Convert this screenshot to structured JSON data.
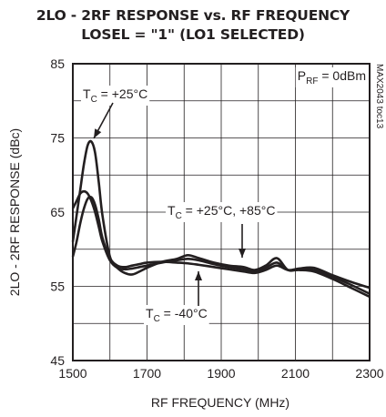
{
  "chart_data": {
    "type": "line",
    "title": "2LO - 2RF RESPONSE vs. RF FREQUENCY",
    "subtitle": "LOSEL = \"1\" (LO1 SELECTED)",
    "xlabel": "RF FREQUENCY (MHz)",
    "ylabel": "2LO - 2RF RESPONSE (dBc)",
    "xlim": [
      1500,
      2300
    ],
    "ylim": [
      45,
      85
    ],
    "x_ticks": [
      1500,
      1700,
      1900,
      2100,
      2300
    ],
    "y_ticks": [
      45,
      55,
      65,
      75,
      85
    ],
    "x_tick_labels": [
      "1500",
      "1700",
      "1900",
      "2100",
      "2300"
    ],
    "y_tick_labels": [
      "45",
      "55",
      "65",
      "75",
      "85"
    ],
    "grid": true,
    "watermark": "MAX2043 toc13",
    "condition": {
      "prefix": "P",
      "sub": "RF",
      "suffix": " = 0dBm"
    },
    "annotations": [
      {
        "prefix": "T",
        "sub": "C",
        "suffix": " = +25°C"
      },
      {
        "prefix": "T",
        "sub": "C",
        "suffix": " = +25°C, +85°C"
      },
      {
        "prefix": "T",
        "sub": "C",
        "suffix": " = -40°C"
      }
    ],
    "series": [
      {
        "x": [
          1500,
          1510,
          1520,
          1530,
          1540,
          1550,
          1560,
          1570,
          1580,
          1600,
          1620,
          1640,
          1660,
          1680,
          1700,
          1740,
          1780,
          1810,
          1840,
          1880,
          1920,
          1960,
          1990,
          2020,
          2050,
          2080,
          2110,
          2150,
          2200,
          2250,
          2300
        ],
        "values": [
          61,
          64.5,
          68,
          71.5,
          74,
          74.5,
          73,
          69,
          64.5,
          59,
          57.5,
          56.8,
          56.6,
          57,
          57.5,
          58.3,
          58.7,
          59.2,
          58.8,
          58.2,
          57.8,
          57.6,
          57.2,
          57.8,
          58.8,
          57.2,
          57.3,
          57.2,
          56.3,
          55.2,
          54
        ]
      },
      {
        "x": [
          1500,
          1510,
          1520,
          1530,
          1540,
          1550,
          1560,
          1570,
          1580,
          1600,
          1620,
          1640,
          1660,
          1680,
          1700,
          1740,
          1780,
          1810,
          1840,
          1880,
          1920,
          1960,
          1990,
          2020,
          2050,
          2080,
          2110,
          2150,
          2200,
          2250,
          2300
        ],
        "values": [
          65.5,
          66.5,
          67.5,
          67.8,
          67.5,
          66.5,
          65,
          63,
          61,
          58.5,
          57.5,
          57.3,
          57.4,
          57.6,
          57.8,
          58.2,
          58.5,
          58.7,
          58.5,
          58,
          57.6,
          57.3,
          57,
          57.5,
          58.2,
          57.2,
          57.2,
          57,
          56,
          54.8,
          53.6
        ]
      },
      {
        "x": [
          1500,
          1510,
          1520,
          1530,
          1540,
          1550,
          1560,
          1570,
          1580,
          1600,
          1620,
          1640,
          1660,
          1680,
          1700,
          1740,
          1780,
          1810,
          1840,
          1880,
          1920,
          1960,
          1990,
          2020,
          2050,
          2080,
          2110,
          2150,
          2200,
          2250,
          2300
        ],
        "values": [
          59,
          61,
          63.5,
          65.5,
          66.8,
          67,
          66,
          64,
          61.5,
          58.8,
          57.8,
          57.6,
          57.8,
          58,
          58.2,
          58.3,
          58.2,
          58.1,
          57.9,
          57.6,
          57.3,
          57,
          56.8,
          57.2,
          57.8,
          57.2,
          57.4,
          57.5,
          56.5,
          55.6,
          54.8
        ]
      }
    ]
  }
}
